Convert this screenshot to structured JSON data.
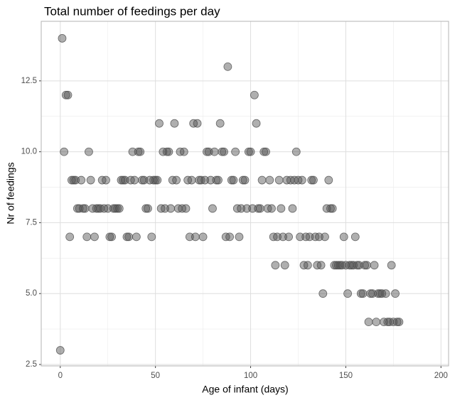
{
  "chart_data": {
    "type": "scatter",
    "title": "Total number of feedings per day",
    "x_label": "Age of infant (days)",
    "y_label": "Nr of feedings",
    "x": [
      0,
      1,
      2,
      3,
      4,
      5,
      6,
      7,
      8,
      9,
      10,
      11,
      12,
      13,
      14,
      15,
      16,
      17,
      18,
      19,
      20,
      21,
      22,
      23,
      24,
      25,
      26,
      27,
      28,
      29,
      30,
      31,
      32,
      33,
      34,
      35,
      36,
      37,
      38,
      39,
      40,
      41,
      42,
      43,
      44,
      45,
      46,
      47,
      48,
      49,
      50,
      51,
      52,
      53,
      54,
      55,
      56,
      57,
      58,
      59,
      60,
      61,
      62,
      63,
      64,
      65,
      66,
      67,
      68,
      69,
      70,
      71,
      72,
      73,
      74,
      75,
      76,
      77,
      78,
      79,
      80,
      81,
      82,
      83,
      84,
      85,
      86,
      87,
      88,
      89,
      90,
      91,
      92,
      93,
      94,
      95,
      96,
      97,
      98,
      99,
      100,
      101,
      102,
      103,
      104,
      105,
      106,
      107,
      108,
      109,
      110,
      111,
      112,
      113,
      114,
      115,
      116,
      117,
      118,
      119,
      120,
      121,
      122,
      123,
      124,
      125,
      126,
      127,
      128,
      129,
      130,
      131,
      132,
      133,
      134,
      135,
      136,
      137,
      138,
      139,
      140,
      141,
      142,
      143,
      144,
      145,
      146,
      147,
      148,
      149,
      150,
      151,
      152,
      153,
      154,
      155,
      156,
      157,
      158,
      159,
      160,
      161,
      162,
      163,
      164,
      165,
      166,
      167,
      168,
      169,
      170,
      171,
      172,
      173,
      174,
      175,
      176,
      177,
      178
    ],
    "series": [
      {
        "name": "feedings",
        "color": "#4d4d4d",
        "values": [
          3,
          14,
          10,
          12,
          12,
          7,
          9,
          9,
          9,
          8,
          8,
          9,
          8,
          8,
          7,
          10,
          9,
          8,
          7,
          8,
          8,
          8,
          9,
          8,
          9,
          8,
          7,
          7,
          8,
          8,
          8,
          8,
          9,
          9,
          9,
          7,
          7,
          9,
          10,
          9,
          7,
          10,
          10,
          9,
          9,
          8,
          8,
          9,
          7,
          9,
          9,
          9,
          11,
          8,
          10,
          8,
          10,
          10,
          8,
          9,
          11,
          9,
          8,
          10,
          8,
          10,
          8,
          9,
          7,
          9,
          11,
          7,
          11,
          9,
          9,
          7,
          9,
          10,
          10,
          9,
          8,
          10,
          9,
          9,
          11,
          10,
          10,
          7,
          13,
          7,
          9,
          9,
          10,
          8,
          7,
          8,
          9,
          9,
          8,
          10,
          10,
          8,
          12,
          11,
          8,
          8,
          9,
          10,
          10,
          8,
          9,
          8,
          7,
          6,
          7,
          9,
          8,
          7,
          6,
          9,
          7,
          9,
          8,
          9,
          10,
          9,
          7,
          9,
          6,
          7,
          6,
          7,
          9,
          9,
          7,
          6,
          7,
          6,
          5,
          7,
          8,
          9,
          8,
          8,
          6,
          6,
          6,
          6,
          6,
          7,
          6,
          5,
          6,
          6,
          6,
          7,
          6,
          6,
          5,
          5,
          6,
          6,
          4,
          5,
          5,
          6,
          4,
          5,
          5,
          5,
          4,
          5,
          4,
          4,
          6,
          4,
          5,
          4,
          4
        ]
      }
    ],
    "xlim": [
      -10,
      204
    ],
    "ylim": [
      2.45,
      14.6
    ],
    "xticks": [
      0,
      50,
      100,
      150,
      200
    ],
    "yticks": [
      {
        "value": 2.5,
        "label": "2.5"
      },
      {
        "value": 5,
        "label": "5.0"
      },
      {
        "value": 7.5,
        "label": "7.5"
      },
      {
        "value": 10,
        "label": "10.0"
      },
      {
        "value": 12.5,
        "label": "12.5"
      }
    ],
    "grid": true
  }
}
